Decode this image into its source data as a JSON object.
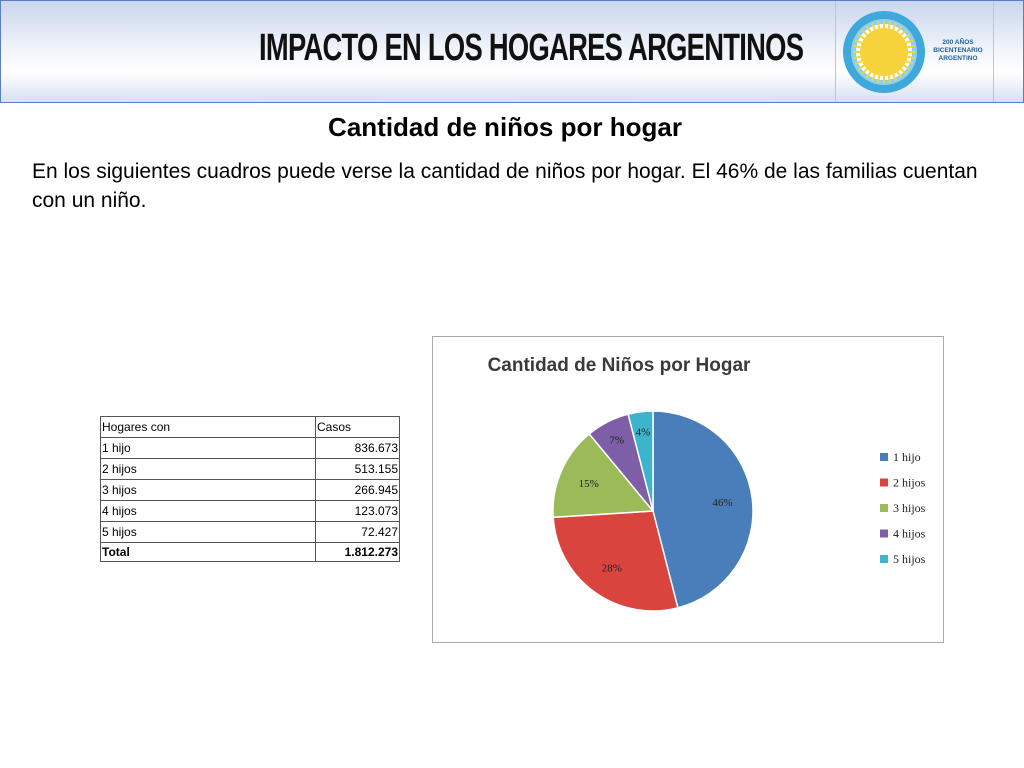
{
  "banner": {
    "title": "IMPACTO EN LOS HOGARES ARGENTINOS",
    "logo_text": [
      "200 AÑOS",
      "BICENTENARIO",
      "ARGENTINO"
    ]
  },
  "page": {
    "heading": "Cantidad de niños por hogar",
    "intro": "En los siguientes cuadros puede verse la cantidad de niños por hogar. El 46% de las familias cuentan con un niño."
  },
  "table": {
    "headers": [
      "Hogares con",
      "Casos"
    ],
    "rows": [
      [
        "1 hijo",
        "836.673"
      ],
      [
        "2 hijos",
        "513.155"
      ],
      [
        "3 hijos",
        "266.945"
      ],
      [
        "4 hijos",
        "123.073"
      ],
      [
        "5 hijos",
        "72.427"
      ]
    ],
    "total": [
      "Total",
      "1.812.273"
    ]
  },
  "colors": {
    "accent_banner": "#5a7fc0",
    "logo_blue": "#3fa9dc",
    "logo_sun": "#f7d33b"
  },
  "chart_data": {
    "type": "pie",
    "title": "Cantidad de Niños por Hogar",
    "categories": [
      "1 hijo",
      "2 hijos",
      "3 hijos",
      "4 hijos",
      "5 hijos"
    ],
    "values": [
      46,
      28,
      15,
      7,
      4
    ],
    "labels": [
      "46%",
      "28%",
      "15%",
      "7%",
      "4%"
    ],
    "colors": [
      "#4a7ebb",
      "#d9443f",
      "#9bbb59",
      "#7e5ea7",
      "#3cb4cc"
    ],
    "legend": "right"
  }
}
